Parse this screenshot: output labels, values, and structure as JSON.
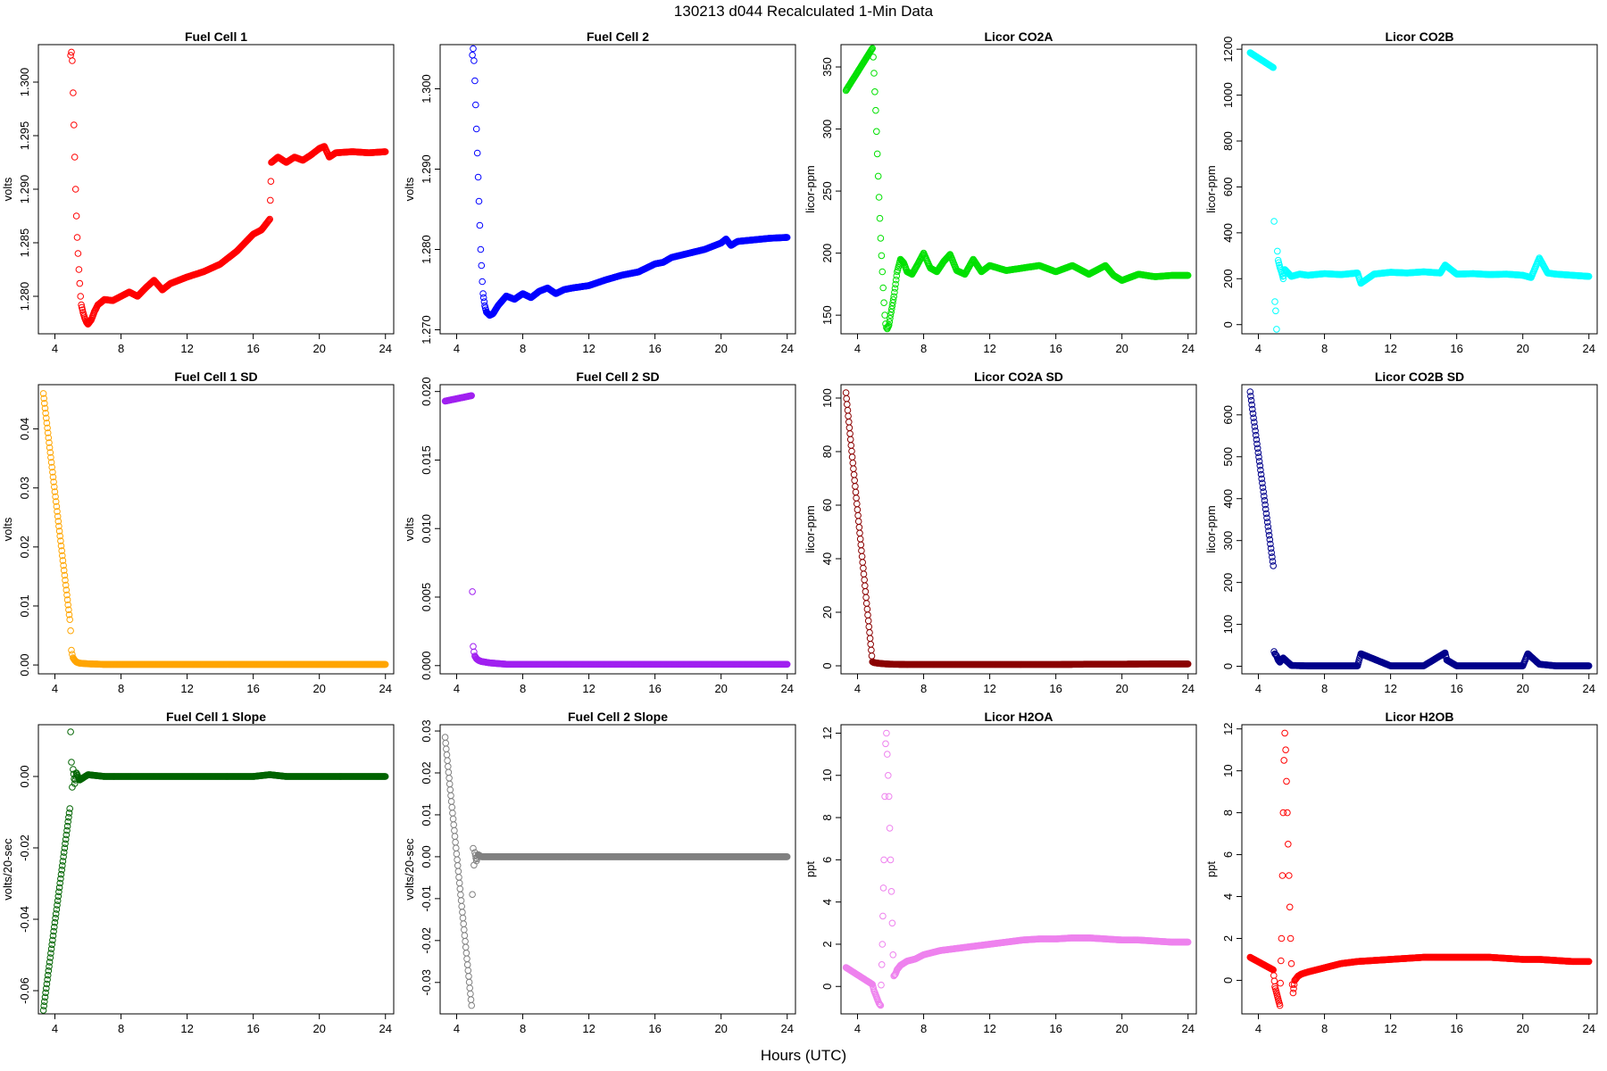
{
  "figure": {
    "title": "130213   d044   Recalculated 1-Min Data",
    "xlabel": "Hours (UTC)"
  },
  "chart_data": [
    {
      "type": "scatter",
      "title": "Fuel Cell 1",
      "xlabel": "",
      "ylabel": "volts",
      "color": "#ff0000",
      "xlim": [
        3,
        24.5
      ],
      "ylim": [
        1.2765,
        1.3035
      ],
      "xticks": [
        4,
        8,
        12,
        16,
        20,
        24
      ],
      "yticks": [
        1.28,
        1.285,
        1.29,
        1.295,
        1.3
      ],
      "ytick_labels": [
        "1.280",
        "1.285",
        "1.290",
        "1.295",
        "1.300"
      ],
      "x": [
        4.95,
        5.0,
        5.05,
        5.1,
        5.15,
        5.2,
        5.25,
        5.3,
        5.35,
        5.4,
        5.45,
        5.5,
        5.55,
        5.6,
        5.7,
        5.8,
        5.9,
        6.0,
        6.2,
        6.4,
        6.6,
        7.0,
        7.5,
        8.0,
        8.5,
        9.0,
        9.5,
        10.0,
        10.5,
        11.0,
        12.0,
        13.0,
        14.0,
        15.0,
        16.0,
        16.5,
        17.0,
        17.1,
        17.5,
        18.0,
        18.5,
        19.0,
        19.5,
        20.0,
        20.3,
        20.6,
        21.0,
        22.0,
        23.0,
        24.0
      ],
      "y": [
        1.3025,
        1.3028,
        1.302,
        1.299,
        1.296,
        1.293,
        1.29,
        1.2875,
        1.2855,
        1.284,
        1.2825,
        1.2812,
        1.28,
        1.2792,
        1.2785,
        1.278,
        1.2776,
        1.2774,
        1.2778,
        1.2786,
        1.2792,
        1.2797,
        1.2796,
        1.28,
        1.2804,
        1.28,
        1.2808,
        1.2815,
        1.2806,
        1.2812,
        1.2818,
        1.2823,
        1.283,
        1.2842,
        1.2858,
        1.2862,
        1.2872,
        1.2925,
        1.293,
        1.2925,
        1.293,
        1.2927,
        1.2932,
        1.2938,
        1.294,
        1.293,
        1.2934,
        1.2935,
        1.2934,
        1.2935
      ]
    },
    {
      "type": "scatter",
      "title": "Fuel Cell 2",
      "xlabel": "",
      "ylabel": "volts",
      "color": "#0000ff",
      "xlim": [
        3,
        24.5
      ],
      "ylim": [
        1.2695,
        1.3055
      ],
      "xticks": [
        4,
        8,
        12,
        16,
        20,
        24
      ],
      "yticks": [
        1.27,
        1.28,
        1.29,
        1.3
      ],
      "ytick_labels": [
        "1.270",
        "1.280",
        "1.290",
        "1.300"
      ],
      "x": [
        4.95,
        5.0,
        5.05,
        5.1,
        5.15,
        5.2,
        5.25,
        5.3,
        5.35,
        5.4,
        5.45,
        5.5,
        5.55,
        5.6,
        5.7,
        5.8,
        6.0,
        6.2,
        6.5,
        7.0,
        7.5,
        8.0,
        8.5,
        9.0,
        9.5,
        10.0,
        10.5,
        11.0,
        12.0,
        13.0,
        14.0,
        15.0,
        16.0,
        16.5,
        17.0,
        18.0,
        19.0,
        20.0,
        20.3,
        20.6,
        21.0,
        22.0,
        23.0,
        24.0
      ],
      "y": [
        1.3042,
        1.305,
        1.3035,
        1.301,
        1.298,
        1.295,
        1.292,
        1.289,
        1.286,
        1.283,
        1.28,
        1.278,
        1.276,
        1.2745,
        1.273,
        1.2722,
        1.2718,
        1.272,
        1.273,
        1.2742,
        1.2738,
        1.2745,
        1.274,
        1.2748,
        1.2752,
        1.2745,
        1.275,
        1.2752,
        1.2755,
        1.2762,
        1.2768,
        1.2772,
        1.2782,
        1.2784,
        1.279,
        1.2795,
        1.28,
        1.2808,
        1.2813,
        1.2805,
        1.281,
        1.2812,
        1.2814,
        1.2815
      ]
    },
    {
      "type": "scatter",
      "title": "Licor CO2A",
      "xlabel": "",
      "ylabel": "licor-ppm",
      "color": "#00e000",
      "xlim": [
        3,
        24.5
      ],
      "ylim": [
        135,
        368
      ],
      "xticks": [
        4,
        8,
        12,
        16,
        20,
        24
      ],
      "yticks": [
        150,
        200,
        250,
        300,
        350
      ],
      "ytick_labels": [
        "150",
        "200",
        "250",
        "300",
        "350"
      ],
      "x": [
        3.3,
        4.9,
        4.95,
        5.0,
        5.05,
        5.1,
        5.15,
        5.2,
        5.25,
        5.3,
        5.35,
        5.4,
        5.45,
        5.5,
        5.55,
        5.6,
        5.65,
        5.7,
        5.75,
        5.8,
        5.9,
        6.0,
        6.2,
        6.4,
        6.6,
        6.8,
        7.0,
        7.3,
        7.6,
        8.0,
        8.4,
        8.8,
        9.2,
        9.6,
        10.0,
        10.5,
        11.0,
        11.5,
        12.0,
        13.0,
        14.0,
        15.0,
        16.0,
        17.0,
        18.0,
        19.0,
        19.5,
        20.0,
        21.0,
        22.0,
        23.0,
        24.0
      ],
      "y": [
        331,
        365,
        358,
        345,
        330,
        315,
        298,
        280,
        262,
        245,
        228,
        212,
        198,
        185,
        172,
        160,
        150,
        143,
        140,
        139,
        142,
        150,
        165,
        185,
        195,
        192,
        185,
        183,
        190,
        200,
        188,
        185,
        193,
        199,
        186,
        183,
        195,
        185,
        190,
        186,
        188,
        190,
        185,
        190,
        183,
        190,
        182,
        178,
        183,
        181,
        182,
        182
      ]
    },
    {
      "type": "scatter",
      "title": "Licor CO2B",
      "xlabel": "",
      "ylabel": "licor-ppm",
      "color": "#00ffff",
      "xlim": [
        3,
        24.5
      ],
      "ylim": [
        -40,
        1220
      ],
      "xticks": [
        4,
        8,
        12,
        16,
        20,
        24
      ],
      "yticks": [
        0,
        200,
        400,
        600,
        800,
        1000,
        1200
      ],
      "ytick_labels": [
        "0",
        "200",
        "400",
        "600",
        "800",
        "1000",
        "1200"
      ],
      "x": [
        3.5,
        4.9,
        4.95,
        5.0,
        5.05,
        5.1,
        5.15,
        5.2,
        5.3,
        5.4,
        5.5,
        5.6,
        6.0,
        6.5,
        7.0,
        8.0,
        9.0,
        10.0,
        10.2,
        11.0,
        12.0,
        13.0,
        14.0,
        15.0,
        15.3,
        16.0,
        17.0,
        18.0,
        19.0,
        20.0,
        20.5,
        21.0,
        21.5,
        22.0,
        23.0,
        24.0
      ],
      "y": [
        1185,
        1120,
        450,
        100,
        60,
        -20,
        320,
        280,
        250,
        230,
        200,
        240,
        210,
        220,
        215,
        222,
        218,
        225,
        180,
        220,
        228,
        225,
        230,
        225,
        260,
        220,
        222,
        218,
        220,
        215,
        205,
        290,
        225,
        220,
        215,
        210
      ]
    },
    {
      "type": "scatter",
      "title": "Fuel Cell 1 SD",
      "xlabel": "",
      "ylabel": "volts",
      "color": "#ffa500",
      "xlim": [
        3,
        24.5
      ],
      "ylim": [
        -0.0015,
        0.0475
      ],
      "xticks": [
        4,
        8,
        12,
        16,
        20,
        24
      ],
      "yticks": [
        0.0,
        0.01,
        0.02,
        0.03,
        0.04
      ],
      "ytick_labels": [
        "0.00",
        "0.01",
        "0.02",
        "0.03",
        "0.04"
      ],
      "x": [
        3.3,
        4.9,
        4.95,
        5.0,
        5.05,
        5.1,
        5.2,
        5.3,
        5.5,
        6.0,
        7.0,
        8.0,
        10.0,
        12.0,
        14.0,
        16.0,
        18.0,
        20.0,
        22.0,
        24.0
      ],
      "y": [
        0.046,
        0.0077,
        0.0058,
        0.0025,
        0.0018,
        0.0012,
        0.0008,
        0.0005,
        0.0003,
        0.0002,
        0.0001,
        0.0001,
        0.0001,
        0.0001,
        0.0001,
        0.0001,
        0.0001,
        0.0001,
        0.0001,
        0.0001
      ]
    },
    {
      "type": "scatter",
      "title": "Fuel Cell 2 SD",
      "xlabel": "",
      "ylabel": "volts",
      "color": "#a020f0",
      "xlim": [
        3,
        24.5
      ],
      "ylim": [
        -0.0006,
        0.0205
      ],
      "xticks": [
        4,
        8,
        12,
        16,
        20,
        24
      ],
      "yticks": [
        0.0,
        0.005,
        0.01,
        0.015,
        0.02
      ],
      "ytick_labels": [
        "0.000",
        "0.005",
        "0.010",
        "0.015",
        "0.020"
      ],
      "x": [
        3.3,
        4.9,
        4.95,
        5.0,
        5.05,
        5.1,
        5.2,
        5.3,
        5.5,
        6.0,
        7.0,
        8.0,
        10.0,
        12.0,
        14.0,
        16.0,
        18.0,
        20.0,
        22.0,
        24.0
      ],
      "y": [
        0.0193,
        0.0197,
        0.0054,
        0.0014,
        0.001,
        0.0007,
        0.0005,
        0.0004,
        0.0003,
        0.0002,
        0.0001,
        0.0001,
        0.0001,
        0.0001,
        0.0001,
        0.0001,
        0.0001,
        0.0001,
        0.0001,
        0.0001
      ]
    },
    {
      "type": "scatter",
      "title": "Licor CO2A SD",
      "xlabel": "",
      "ylabel": "licor-ppm",
      "color": "#8b0000",
      "xlim": [
        3,
        24.5
      ],
      "ylim": [
        -3,
        105
      ],
      "xticks": [
        4,
        8,
        12,
        16,
        20,
        24
      ],
      "yticks": [
        0,
        20,
        40,
        60,
        80,
        100
      ],
      "ytick_labels": [
        "0",
        "20",
        "40",
        "60",
        "80",
        "100"
      ],
      "x": [
        3.3,
        4.9,
        5.0,
        5.2,
        5.5,
        6.0,
        7.0,
        8.0,
        10.0,
        12.0,
        14.0,
        16.0,
        18.0,
        20.0,
        22.0,
        24.0
      ],
      "y": [
        102,
        1.5,
        1.2,
        1.0,
        0.8,
        0.6,
        0.5,
        0.5,
        0.5,
        0.5,
        0.5,
        0.5,
        0.6,
        0.6,
        0.7,
        0.7
      ]
    },
    {
      "type": "scatter",
      "title": "Licor CO2B SD",
      "xlabel": "",
      "ylabel": "licor-ppm",
      "color": "#00008b",
      "xlim": [
        3,
        24.5
      ],
      "ylim": [
        -18,
        672
      ],
      "xticks": [
        4,
        8,
        12,
        16,
        20,
        24
      ],
      "yticks": [
        0,
        100,
        200,
        300,
        400,
        500,
        600
      ],
      "ytick_labels": [
        "0",
        "100",
        "200",
        "300",
        "400",
        "500",
        "600"
      ],
      "x": [
        3.5,
        4.9,
        4.95,
        5.0,
        5.1,
        5.2,
        5.3,
        5.5,
        6.0,
        7.0,
        8.0,
        10.0,
        10.2,
        12.0,
        14.0,
        15.3,
        15.4,
        16.0,
        18.0,
        20.0,
        20.3,
        21.0,
        22.0,
        24.0
      ],
      "y": [
        655,
        240,
        35,
        30,
        25,
        15,
        10,
        20,
        2,
        1,
        1,
        1,
        30,
        1,
        1,
        32,
        15,
        1,
        1,
        1,
        30,
        5,
        1,
        1
      ]
    },
    {
      "type": "scatter",
      "title": "Fuel Cell 1 Slope",
      "xlabel": "",
      "ylabel": "volts/20-sec",
      "color": "#006400",
      "xlim": [
        3,
        24.5
      ],
      "ylim": [
        -0.0665,
        0.0145
      ],
      "xticks": [
        4,
        8,
        12,
        16,
        20,
        24
      ],
      "yticks": [
        -0.06,
        -0.04,
        -0.02,
        0.0
      ],
      "ytick_labels": [
        "-0.06",
        "-0.04",
        "-0.02",
        "0.00"
      ],
      "x": [
        3.3,
        4.9,
        4.95,
        5.0,
        5.05,
        5.1,
        5.2,
        5.3,
        5.5,
        6.0,
        7.0,
        8.0,
        10.0,
        12.0,
        14.0,
        16.0,
        17.0,
        18.0,
        20.0,
        22.0,
        24.0
      ],
      "y": [
        -0.0655,
        -0.009,
        0.0125,
        0.004,
        -0.003,
        0.002,
        -0.002,
        0.001,
        -0.001,
        0.0005,
        0.0,
        0.0,
        0.0,
        0.0,
        0.0,
        0.0,
        0.0005,
        0.0,
        0.0,
        0.0,
        0.0
      ]
    },
    {
      "type": "scatter",
      "title": "Fuel Cell 2 Slope",
      "xlabel": "",
      "ylabel": "volts/20-sec",
      "color": "#808080",
      "xlim": [
        3,
        24.5
      ],
      "ylim": [
        -0.0375,
        0.0315
      ],
      "xticks": [
        4,
        8,
        12,
        16,
        20,
        24
      ],
      "yticks": [
        -0.03,
        -0.02,
        -0.01,
        0.0,
        0.01,
        0.02,
        0.03
      ],
      "ytick_labels": [
        "-0.03",
        "-0.02",
        "-0.01",
        "0.00",
        "0.01",
        "0.02",
        "0.03"
      ],
      "x": [
        3.3,
        4.9,
        4.95,
        5.0,
        5.05,
        5.1,
        5.2,
        5.3,
        5.5,
        6.0,
        7.0,
        8.0,
        10.0,
        12.0,
        14.0,
        16.0,
        18.0,
        20.0,
        22.0,
        24.0
      ],
      "y": [
        0.0285,
        -0.0355,
        -0.009,
        0.002,
        -0.002,
        0.001,
        -0.001,
        0.0005,
        0.0,
        0.0,
        0.0,
        0.0,
        0.0,
        0.0,
        0.0,
        0.0,
        0.0,
        0.0,
        0.0,
        0.0
      ]
    },
    {
      "type": "scatter",
      "title": "Licor H2OA",
      "xlabel": "",
      "ylabel": "ppt",
      "color": "#ee82ee",
      "xlim": [
        3,
        24.5
      ],
      "ylim": [
        -1.3,
        12.4
      ],
      "xticks": [
        4,
        8,
        12,
        16,
        20,
        24
      ],
      "yticks": [
        0,
        2,
        4,
        6,
        8,
        10,
        12
      ],
      "ytick_labels": [
        "0",
        "2",
        "4",
        "6",
        "8",
        "10",
        "12"
      ],
      "x": [
        3.3,
        4.9,
        5.0,
        5.1,
        5.2,
        5.3,
        5.4,
        5.5,
        5.6,
        5.65,
        5.7,
        5.75,
        5.8,
        5.85,
        5.9,
        5.95,
        6.0,
        6.05,
        6.1,
        6.15,
        6.2,
        6.3,
        6.4,
        6.6,
        7.0,
        7.5,
        8.0,
        9.0,
        10.0,
        11.0,
        12.0,
        13.0,
        14.0,
        15.0,
        16.0,
        17.0,
        18.0,
        19.0,
        20.0,
        21.0,
        22.0,
        23.0,
        24.0
      ],
      "y": [
        0.9,
        0.1,
        -0.2,
        -0.4,
        -0.6,
        -0.8,
        -0.9,
        2.0,
        6.0,
        9.0,
        11.5,
        12.0,
        11.0,
        10.0,
        9.0,
        7.5,
        6.0,
        4.5,
        3.0,
        1.5,
        0.5,
        0.6,
        0.8,
        1.0,
        1.2,
        1.3,
        1.5,
        1.7,
        1.8,
        1.9,
        2.0,
        2.1,
        2.2,
        2.25,
        2.25,
        2.3,
        2.3,
        2.25,
        2.2,
        2.2,
        2.15,
        2.1,
        2.1
      ]
    },
    {
      "type": "scatter",
      "title": "Licor H2OB",
      "xlabel": "",
      "ylabel": "ppt",
      "color": "#ff0000",
      "xlim": [
        3,
        24.5
      ],
      "ylim": [
        -1.6,
        12.2
      ],
      "xticks": [
        4,
        8,
        12,
        16,
        20,
        24
      ],
      "yticks": [
        0,
        2,
        4,
        6,
        8,
        10,
        12
      ],
      "ytick_labels": [
        "0",
        "2",
        "4",
        "6",
        "8",
        "10",
        "12"
      ],
      "x": [
        3.5,
        4.9,
        5.0,
        5.1,
        5.2,
        5.3,
        5.4,
        5.45,
        5.5,
        5.55,
        5.6,
        5.65,
        5.7,
        5.75,
        5.8,
        5.85,
        5.9,
        5.95,
        6.0,
        6.05,
        6.1,
        6.2,
        6.4,
        6.6,
        7.0,
        7.5,
        8.0,
        9.0,
        10.0,
        11.0,
        12.0,
        13.0,
        14.0,
        15.0,
        16.0,
        17.0,
        18.0,
        19.0,
        20.0,
        21.0,
        22.0,
        23.0,
        24.0
      ],
      "y": [
        1.1,
        0.5,
        -0.3,
        -0.6,
        -0.9,
        -1.2,
        2.0,
        5.0,
        8.0,
        10.5,
        11.8,
        11.0,
        9.5,
        8.0,
        6.5,
        5.0,
        3.5,
        2.0,
        0.8,
        -0.2,
        -0.6,
        0.0,
        0.2,
        0.3,
        0.4,
        0.5,
        0.6,
        0.8,
        0.9,
        0.95,
        1.0,
        1.05,
        1.1,
        1.1,
        1.1,
        1.1,
        1.1,
        1.05,
        1.0,
        1.0,
        0.95,
        0.9,
        0.9
      ]
    }
  ]
}
